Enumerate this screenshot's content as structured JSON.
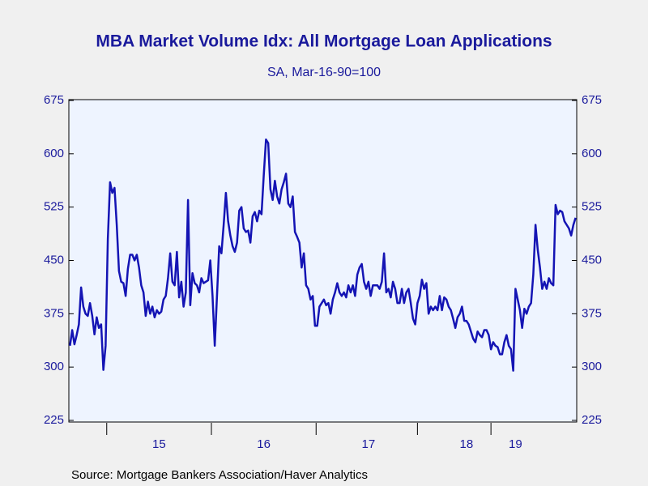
{
  "chart_data": {
    "type": "line",
    "title": "MBA Market Volume Idx: All Mortgage Loan Applications",
    "subtitle": "SA, Mar-16-90=100",
    "source": "Source:  Mortgage Bankers Association/Haver Analytics",
    "categories": [
      null,
      null,
      null,
      null,
      null,
      null,
      null,
      null,
      null,
      null,
      null,
      null,
      null,
      null,
      null,
      null,
      null,
      null,
      null,
      null,
      null,
      null,
      null,
      null,
      null,
      null,
      null,
      null,
      null,
      null,
      null,
      null,
      null,
      null,
      null,
      null,
      null,
      null,
      null,
      null,
      "15",
      null,
      null,
      null,
      null,
      null,
      null,
      null,
      null,
      null,
      null,
      null,
      null,
      null,
      null,
      null,
      null,
      null,
      null,
      null,
      null,
      null,
      null,
      null,
      null,
      null,
      null,
      null,
      null,
      null,
      null,
      null,
      null,
      null,
      null,
      null,
      null,
      null,
      null,
      null,
      null,
      null,
      null,
      null,
      null,
      null,
      null,
      "16",
      null,
      null,
      null,
      null,
      null,
      null,
      null,
      null,
      null,
      null,
      null,
      null,
      null,
      null,
      null,
      null,
      null,
      null,
      null,
      null,
      null,
      null,
      null,
      null,
      null,
      null,
      null,
      null,
      null,
      null,
      null,
      null,
      null,
      null,
      null,
      null,
      null,
      null,
      null,
      null,
      null,
      null,
      null,
      null,
      null,
      null,
      "17",
      null,
      null,
      null,
      null,
      null,
      null,
      null,
      null,
      null,
      null,
      null,
      null,
      null,
      null,
      null,
      null,
      null,
      null,
      null,
      null,
      null,
      null,
      null,
      null,
      null,
      null,
      null,
      null,
      null,
      null,
      null,
      null,
      null,
      null,
      null,
      null,
      null,
      null,
      null,
      null,
      null,
      null,
      null,
      "18",
      null,
      null,
      null,
      null,
      null,
      null,
      null,
      null,
      null,
      null,
      null,
      null,
      null,
      null,
      null,
      null,
      null,
      null,
      null,
      null,
      null,
      "19",
      null,
      null,
      null,
      null,
      null,
      null,
      null,
      null,
      null,
      null,
      null,
      null,
      null,
      null,
      null,
      null,
      null,
      null,
      null,
      null,
      null,
      null,
      null,
      null,
      null,
      null,
      null
    ],
    "series": [
      {
        "color": "#1414b4",
        "values": [
          330,
          352,
          332,
          345,
          360,
          412,
          385,
          375,
          372,
          390,
          372,
          346,
          370,
          355,
          360,
          296,
          330,
          480,
          560,
          545,
          552,
          500,
          435,
          420,
          418,
          400,
          438,
          458,
          458,
          450,
          458,
          440,
          415,
          405,
          372,
          392,
          375,
          385,
          370,
          380,
          375,
          378,
          395,
          400,
          425,
          460,
          420,
          415,
          462,
          398,
          420,
          385,
          405,
          535,
          387,
          432,
          418,
          415,
          405,
          425,
          418,
          420,
          422,
          450,
          400,
          330,
          400,
          470,
          460,
          500,
          545,
          505,
          485,
          470,
          462,
          475,
          520,
          525,
          495,
          490,
          492,
          475,
          512,
          518,
          505,
          520,
          515,
          570,
          620,
          615,
          550,
          535,
          562,
          540,
          530,
          550,
          560,
          572,
          530,
          525,
          540,
          490,
          483,
          475,
          440,
          460,
          415,
          410,
          395,
          400,
          358,
          358,
          385,
          390,
          395,
          387,
          390,
          375,
          395,
          405,
          418,
          405,
          400,
          405,
          398,
          415,
          405,
          415,
          400,
          430,
          440,
          445,
          420,
          410,
          420,
          400,
          415,
          415,
          415,
          410,
          420,
          460,
          405,
          410,
          398,
          420,
          410,
          390,
          390,
          410,
          390,
          405,
          410,
          390,
          368,
          360,
          390,
          400,
          423,
          410,
          418,
          375,
          385,
          380,
          385,
          380,
          400,
          380,
          398,
          395,
          385,
          380,
          368,
          355,
          370,
          375,
          385,
          365,
          365,
          360,
          350,
          340,
          335,
          350,
          345,
          342,
          352,
          352,
          345,
          325,
          335,
          330,
          328,
          318,
          318,
          335,
          345,
          330,
          325,
          295,
          410,
          395,
          380,
          355,
          382,
          375,
          385,
          390,
          430,
          500,
          465,
          440,
          410,
          420,
          410,
          425,
          418,
          415,
          528,
          515,
          520,
          518,
          505,
          500,
          495,
          485,
          500,
          510
        ]
      }
    ],
    "ylim": [
      225,
      675
    ],
    "yticks": [
      225,
      300,
      375,
      450,
      525,
      600,
      675
    ]
  }
}
